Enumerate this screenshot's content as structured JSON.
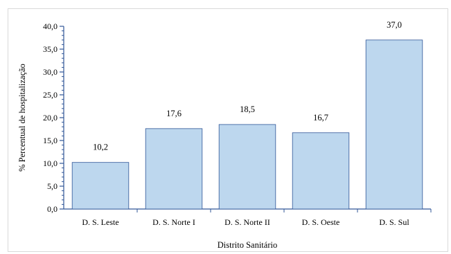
{
  "chart_data": {
    "type": "bar",
    "title": "",
    "xlabel": "Distrito Sanitário",
    "ylabel": "% Percentual de hospitalização",
    "categories": [
      "D. S. Leste",
      "D. S. Norte I",
      "D. S. Norte II",
      "D. S. Oeste",
      "D. S. Sul"
    ],
    "values": [
      10.2,
      17.6,
      18.5,
      16.7,
      37.0
    ],
    "data_labels": [
      "10,2",
      "17,6",
      "18,5",
      "16,7",
      "37,0"
    ],
    "ylim": [
      0,
      40
    ],
    "yticks": [
      0,
      5,
      10,
      15,
      20,
      25,
      30,
      35,
      40
    ],
    "ytick_labels": [
      "0,0",
      "5,0",
      "10,0",
      "15,0",
      "20,0",
      "25,0",
      "30,0",
      "35,0",
      "40,0"
    ],
    "grid": false,
    "legend": "none",
    "colors": {
      "bar_fill": "#bdd7ee",
      "bar_stroke": "#2f5597",
      "axis": "#2f5597"
    }
  }
}
